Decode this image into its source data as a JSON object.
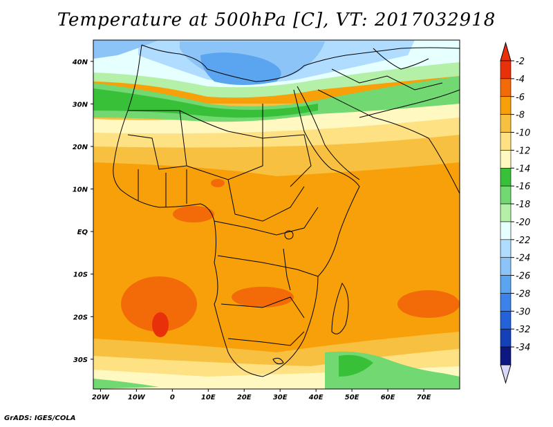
{
  "title": "Temperature at 500hPa [C], VT: 2017032918",
  "footer": "GrADS: IGES/COLA",
  "map": {
    "lon_range": [
      -22,
      80
    ],
    "lat_range": [
      -37,
      45
    ],
    "x_ticks": [
      {
        "value": -20,
        "label": "20W"
      },
      {
        "value": -10,
        "label": "10W"
      },
      {
        "value": 0,
        "label": "0"
      },
      {
        "value": 10,
        "label": "10E"
      },
      {
        "value": 20,
        "label": "20E"
      },
      {
        "value": 30,
        "label": "30E"
      },
      {
        "value": 40,
        "label": "40E"
      },
      {
        "value": 50,
        "label": "50E"
      },
      {
        "value": 60,
        "label": "60E"
      },
      {
        "value": 70,
        "label": "70E"
      }
    ],
    "y_ticks": [
      {
        "value": 40,
        "label": "40N"
      },
      {
        "value": 30,
        "label": "30N"
      },
      {
        "value": 20,
        "label": "20N"
      },
      {
        "value": 10,
        "label": "10N"
      },
      {
        "value": 0,
        "label": "EQ"
      },
      {
        "value": -10,
        "label": "10S"
      },
      {
        "value": -20,
        "label": "20S"
      },
      {
        "value": -30,
        "label": "30S"
      }
    ]
  },
  "colorbar": {
    "labels": [
      "-2",
      "-4",
      "-6",
      "-8",
      "-10",
      "-12",
      "-14",
      "-16",
      "-18",
      "-20",
      "-22",
      "-24",
      "-26",
      "-28",
      "-30",
      "-32",
      "-34"
    ],
    "colors": [
      "#e8300a",
      "#f36b08",
      "#f7a009",
      "#f8c040",
      "#fde183",
      "#fff8c0",
      "#38c038",
      "#72d872",
      "#b4f0a8",
      "#e6ffff",
      "#b0dcff",
      "#8cc4f8",
      "#5aa4f0",
      "#3c82e8",
      "#2362d8",
      "#1440b8",
      "#0c1880"
    ],
    "top_arrow_color": "#e8300a",
    "bottom_arrow_color": "#d8d8f8"
  }
}
